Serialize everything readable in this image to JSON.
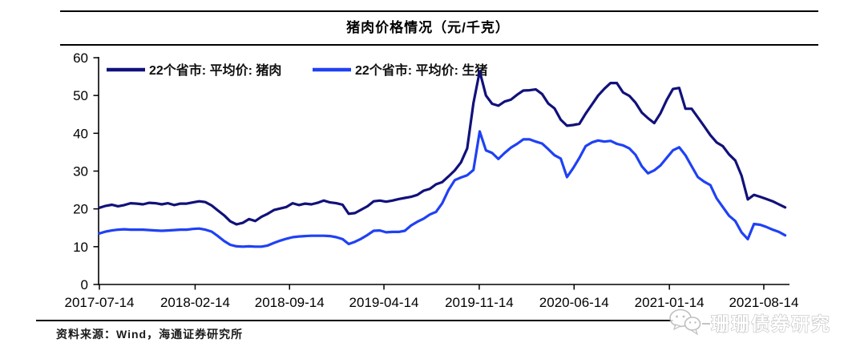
{
  "header": {
    "title": "猪肉价格情况（元/千克）"
  },
  "footer": {
    "source_label": "资料来源：Wind，海通证券研究所"
  },
  "watermark": {
    "text": "珊珊债券研究",
    "icon": "wechat-icon"
  },
  "colors": {
    "pork_line": "#11117b",
    "live_hog_line": "#1f41f5",
    "axis": "#000000",
    "rule": "#000000"
  },
  "chart_data": {
    "type": "line",
    "title": "猪肉价格情况（元/千克）",
    "unit": "元/千克",
    "grid": false,
    "legend_position": "top-inside",
    "ylim": [
      0,
      60
    ],
    "y_ticks": [
      0,
      10,
      20,
      30,
      40,
      50,
      60
    ],
    "x_tick_labels": [
      "2017-07-14",
      "2018-02-14",
      "2018-09-14",
      "2019-04-14",
      "2019-11-14",
      "2020-06-14",
      "2021-01-14",
      "2021-08-14"
    ],
    "x_start_date": "2017-07-14",
    "x_interval_days": 14,
    "series": [
      {
        "key": "pork-price",
        "name": "22个省市: 平均价: 猪肉",
        "color": "#11117b",
        "values": [
          20.3,
          20.8,
          21.1,
          20.7,
          21.0,
          21.5,
          21.4,
          21.2,
          21.6,
          21.5,
          21.2,
          21.5,
          21.0,
          21.4,
          21.4,
          21.7,
          22.0,
          21.8,
          20.9,
          19.6,
          18.3,
          16.7,
          15.9,
          16.3,
          17.3,
          16.8,
          17.9,
          18.7,
          19.7,
          20.1,
          20.5,
          21.5,
          21.0,
          21.4,
          21.2,
          21.6,
          22.2,
          21.7,
          21.5,
          21.1,
          18.7,
          18.9,
          19.8,
          20.7,
          22.0,
          22.2,
          21.9,
          22.2,
          22.6,
          22.9,
          23.2,
          23.7,
          24.8,
          25.3,
          26.5,
          27.1,
          28.6,
          30.2,
          32.3,
          36.0,
          48.0,
          56.4,
          50.0,
          47.8,
          47.3,
          48.4,
          48.9,
          50.2,
          51.3,
          51.4,
          51.6,
          50.4,
          47.9,
          46.6,
          43.6,
          42.0,
          42.2,
          42.5,
          45.2,
          47.6,
          50.0,
          51.8,
          53.3,
          53.3,
          50.8,
          49.9,
          48.1,
          45.5,
          44.0,
          42.7,
          45.3,
          48.8,
          51.7,
          52.0,
          46.5,
          46.5,
          44.2,
          41.9,
          39.5,
          37.6,
          36.6,
          34.4,
          32.8,
          28.8,
          22.5,
          23.7,
          23.2,
          22.6,
          22.0,
          21.2,
          20.4
        ]
      },
      {
        "key": "live-hog-price",
        "name": "22个省市: 平均价: 生猪",
        "color": "#1f41f5",
        "values": [
          13.5,
          14.0,
          14.3,
          14.5,
          14.6,
          14.5,
          14.5,
          14.5,
          14.4,
          14.3,
          14.2,
          14.3,
          14.4,
          14.5,
          14.5,
          14.7,
          14.8,
          14.5,
          14.0,
          12.8,
          11.5,
          10.5,
          10.1,
          10.0,
          10.1,
          10.0,
          10.0,
          10.3,
          11.0,
          11.6,
          12.1,
          12.5,
          12.7,
          12.8,
          12.9,
          12.9,
          12.9,
          12.8,
          12.5,
          12.0,
          10.7,
          11.3,
          12.1,
          13.1,
          14.2,
          14.3,
          13.8,
          13.9,
          13.9,
          14.2,
          15.6,
          16.6,
          17.4,
          18.5,
          19.2,
          21.5,
          25.0,
          27.6,
          28.3,
          28.9,
          30.3,
          40.5,
          35.5,
          34.8,
          33.2,
          34.8,
          36.2,
          37.2,
          38.4,
          38.4,
          37.8,
          37.3,
          35.8,
          34.2,
          33.3,
          28.4,
          30.8,
          33.5,
          36.6,
          37.6,
          38.1,
          37.8,
          38.0,
          37.2,
          36.8,
          36.0,
          34.3,
          31.3,
          29.4,
          30.2,
          31.5,
          33.5,
          35.5,
          36.3,
          34.2,
          31.3,
          28.4,
          27.2,
          26.3,
          22.8,
          20.5,
          18.2,
          16.8,
          13.8,
          12.0,
          16.0,
          15.8,
          15.2,
          14.5,
          13.9,
          13.0
        ]
      }
    ]
  }
}
